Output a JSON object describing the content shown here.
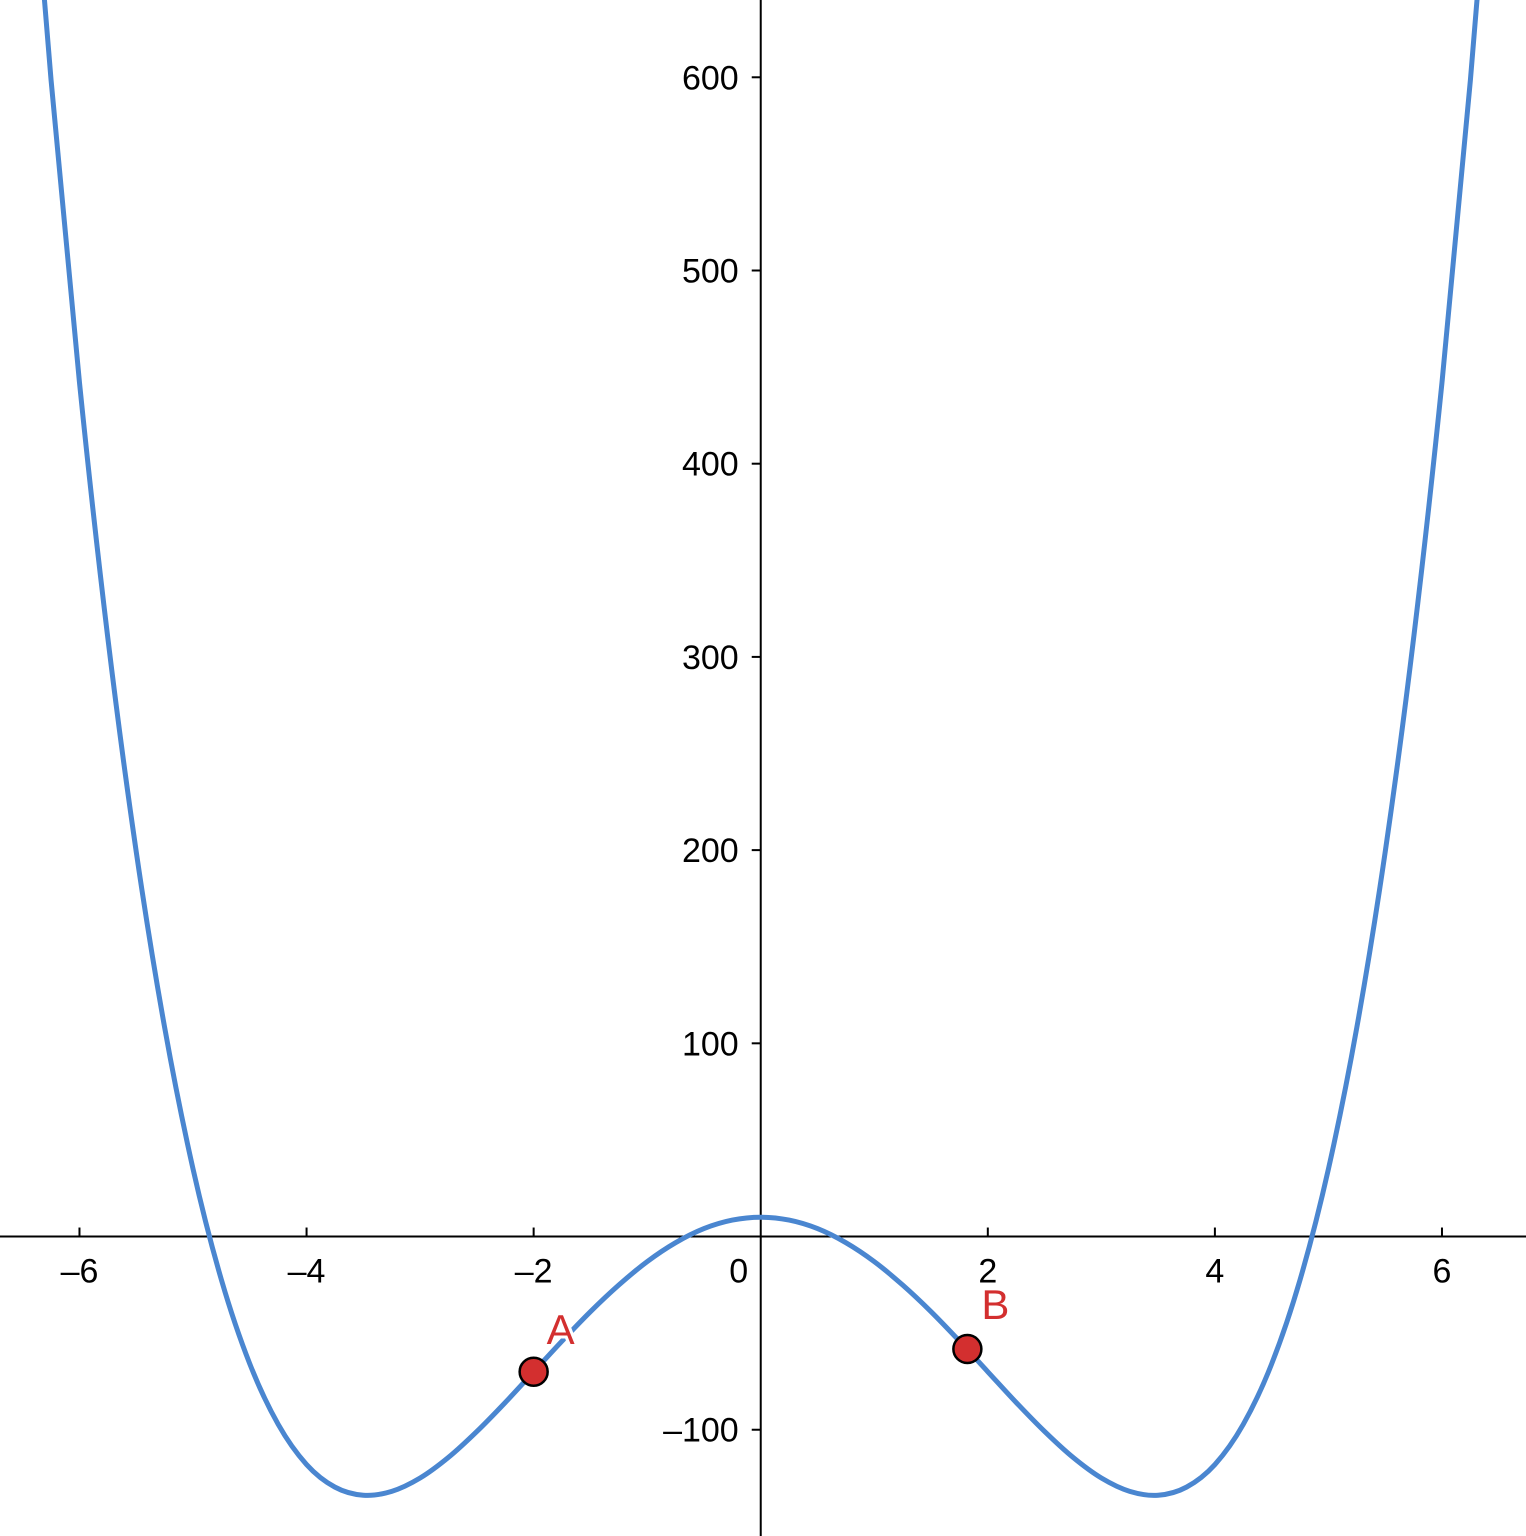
{
  "chart_data": {
    "type": "line",
    "title": "",
    "xlabel": "",
    "ylabel": "",
    "xlim": [
      -6.7,
      6.74
    ],
    "ylim": [
      -155,
      640
    ],
    "grid": false,
    "x_ticks": [
      -6,
      -4,
      -2,
      0,
      2,
      4,
      6
    ],
    "x_tick_labels": [
      "–6",
      "–4",
      "–2",
      "0",
      "2",
      "4",
      "6"
    ],
    "y_ticks": [
      -100,
      100,
      200,
      300,
      400,
      500,
      600
    ],
    "y_tick_labels": [
      "–100",
      "100",
      "200",
      "300",
      "400",
      "500",
      "600"
    ],
    "series": [
      {
        "color": "#4a86d0",
        "x": [
          -6.5,
          -6.25,
          -6,
          -5.75,
          -5.5,
          -5.25,
          -5,
          -4.75,
          -4.5,
          -4.25,
          -4,
          -3.75,
          -3.5,
          -3.25,
          -3,
          -2.75,
          -2.5,
          -2.25,
          -2,
          -1.75,
          -1.5,
          -1.25,
          -1,
          -0.75,
          -0.5,
          -0.25,
          0,
          0.25,
          0.5,
          0.75,
          1,
          1.25,
          1.5,
          1.75,
          2,
          2.25,
          2.5,
          2.75,
          3,
          3.25,
          3.5,
          3.75,
          4,
          4.25,
          4.5,
          4.75,
          5,
          5.25,
          5.5,
          5.75,
          6,
          6.25,
          6.5
        ],
        "y": [
          781.1,
          598.4,
          442,
          309.6,
          199.1,
          108.2,
          35,
          -22.4,
          -65.9,
          -97.2,
          -118,
          -129.7,
          -133.9,
          -131.9,
          -125,
          -114.3,
          -100.9,
          -85.9,
          -70,
          -54.1,
          -38.9,
          -25.1,
          -13,
          -3.2,
          4.1,
          8.5,
          10,
          8.5,
          4.1,
          -3.2,
          -13,
          -25.1,
          -38.9,
          -54.1,
          -70,
          -85.9,
          -100.9,
          -114.3,
          -125,
          -131.9,
          -133.9,
          -129.7,
          -118,
          -97.2,
          -65.9,
          -22.4,
          35,
          108.2,
          199.1,
          309.6,
          442,
          598.4,
          781.1
        ]
      }
    ],
    "points": [
      {
        "label": "A",
        "x": -2,
        "y": -70,
        "color": "#d32f2f"
      },
      {
        "label": "B",
        "x": 1.82,
        "y": -58.2,
        "color": "#d32f2f"
      }
    ]
  }
}
